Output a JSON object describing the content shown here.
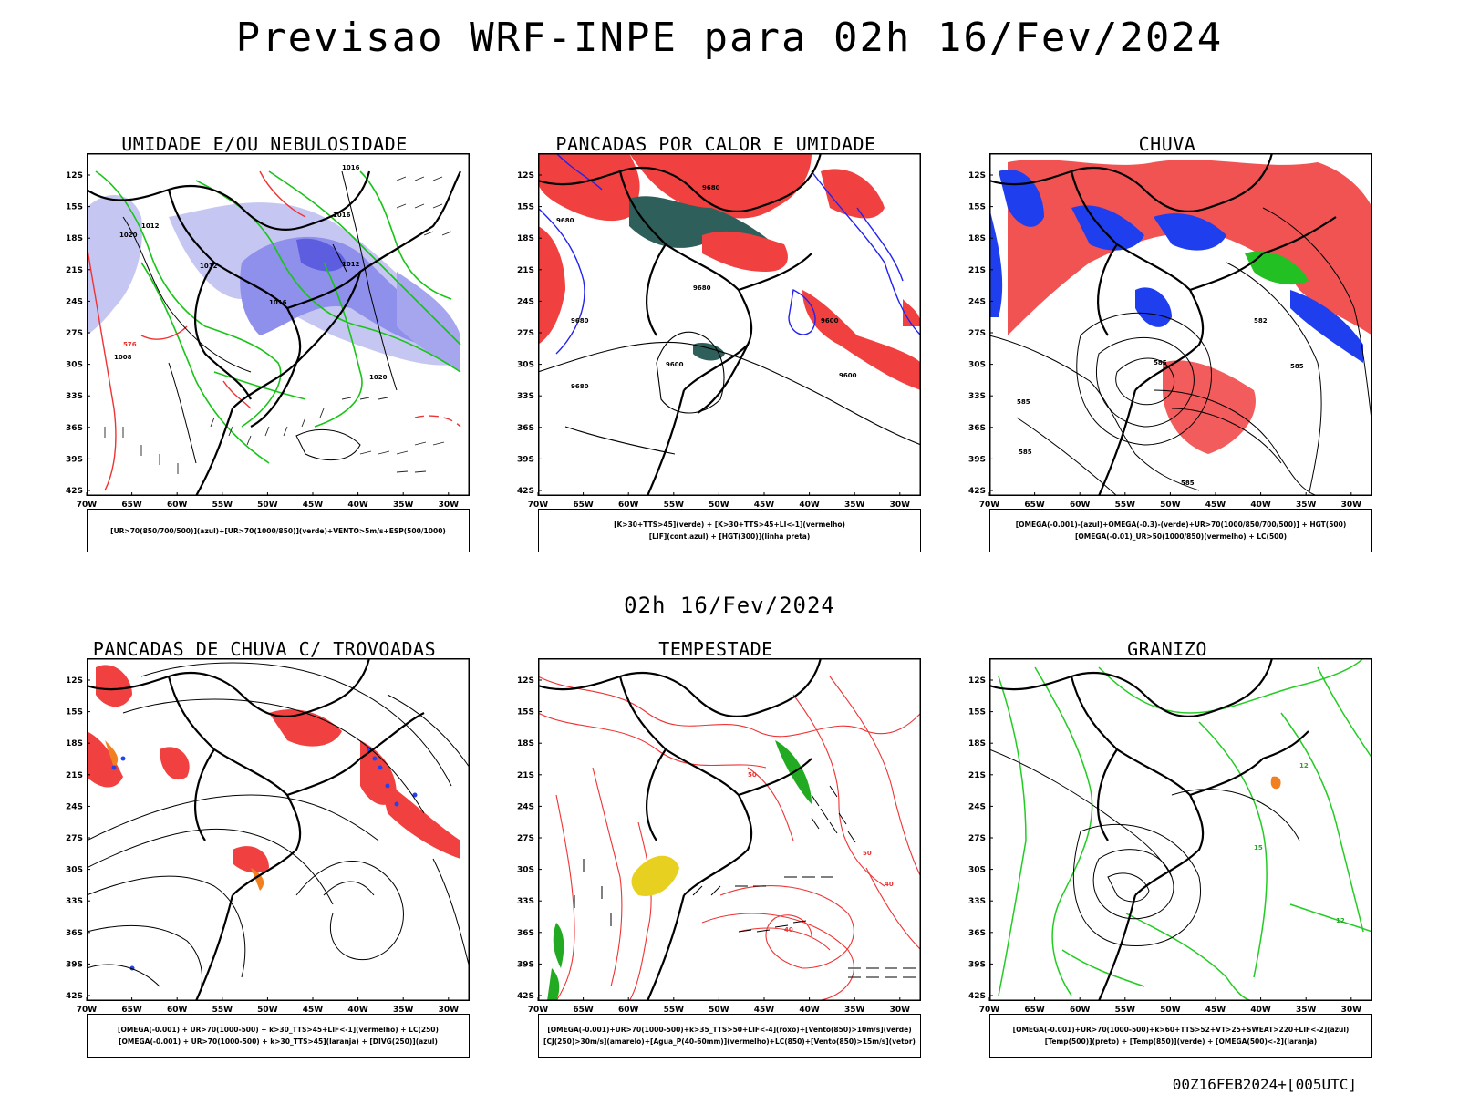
{
  "title": "Previsao WRF-INPE  para 02h 16/Fev/2024",
  "subtitle": "02h 16/Fev/2024",
  "footer": "00Z16FEB2024+[005UTC]",
  "axes": {
    "lat_labels": [
      "12S",
      "15S",
      "18S",
      "21S",
      "24S",
      "27S",
      "30S",
      "33S",
      "36S",
      "39S",
      "42S"
    ],
    "lon_labels": [
      "70W",
      "65W",
      "60W",
      "55W",
      "50W",
      "45W",
      "40W",
      "35W",
      "30W"
    ]
  },
  "panels": [
    {
      "title": "UMIDADE E/OU NEBULOSIDADE",
      "legend": [
        "[UR>70(850/700/500)](azul)+[UR>70(1000/850)](verde)+VENTO>5m/s+ESP(500/1000)"
      ],
      "colors": {
        "fill_light": "#c6c6f2",
        "fill_dark": "#6f6fe6",
        "contour1": "#18c418",
        "contour2": "#ee3333",
        "contour3": "#000000"
      },
      "contour_labels": [
        "1016",
        "1012",
        "1020",
        "1008",
        "576",
        "1012",
        "1016",
        "1020",
        "1016",
        "1012"
      ]
    },
    {
      "title": "PANCADAS POR CALOR E UMIDADE",
      "legend": [
        "[K>30+TTS>45](verde) + [K>30+TTS>45+LI<-1](vermelho)",
        "[LIF](cont.azul) + [HGT(300)](linha preta)"
      ],
      "colors": {
        "fill1": "#f04040",
        "fill2": "#2f5f5a",
        "contour1": "#2222ee",
        "contour2": "#000000"
      },
      "contour_labels": [
        "9680",
        "9680",
        "9680",
        "9600",
        "9680",
        "9600",
        "9680",
        "9600"
      ]
    },
    {
      "title": "CHUVA",
      "legend": [
        "[OMEGA(-0.001)-(azul)+OMEGA(-0.3)-(verde)+UR>70(1000/850/700/500)] + HGT(500)",
        "[OMEGA(-0.01)_UR>50(1000/850)(vermelho) + LC(500)"
      ],
      "colors": {
        "fill1": "#f04040",
        "fill2": "#1f3fee",
        "fill3": "#22c022",
        "contour1": "#000000"
      },
      "contour_labels": [
        "585",
        "585",
        "585",
        "585",
        "582",
        "585"
      ]
    },
    {
      "title": "PANCADAS DE CHUVA C/ TROVOADAS",
      "legend": [
        "[OMEGA(-0.001) + UR>70(1000-500) + k>30_TTS>45+LIF<-1](vermelho) + LC(250)",
        "[OMEGA(-0.001) + UR>70(1000-500) + k>30_TTS>45](laranja) + [DIVG(250)](azul)"
      ],
      "colors": {
        "fill1": "#f04040",
        "fill2": "#f08020",
        "fill3": "#2244ee",
        "contour1": "#000000"
      },
      "contour_labels": []
    },
    {
      "title": "TEMPESTADE",
      "legend": [
        "[OMEGA(-0.001)+UR>70(1000-500)+k>35_TTS>50+LIF<-4](roxo)+[Vento(850)>10m/s](verde)",
        "[CJ(250)>30m/s](amarelo)+[Agua_P(40-60mm)](vermelho)+LC(850)+[Vento(850)>15m/s](vetor)"
      ],
      "colors": {
        "fill1": "#e8d020",
        "fill2": "#22aa22",
        "contour1": "#ee3333",
        "contour2": "#000000"
      },
      "contour_labels": [
        "50",
        "40",
        "50",
        "40"
      ]
    },
    {
      "title": "GRANIZO",
      "legend": [
        "[OMEGA(-0.001)+UR>70(1000-500)+k>60+TTS>52+VT>25+SWEAT>220+LIF<-2](azul)",
        "[Temp(500)](preto) + [Temp(850)](verde) + [OMEGA(500)<-2](laranja)"
      ],
      "colors": {
        "fill1": "#f08020",
        "contour1": "#22cc22",
        "contour2": "#000000"
      },
      "contour_labels": [
        "15",
        "12",
        "12"
      ]
    }
  ]
}
